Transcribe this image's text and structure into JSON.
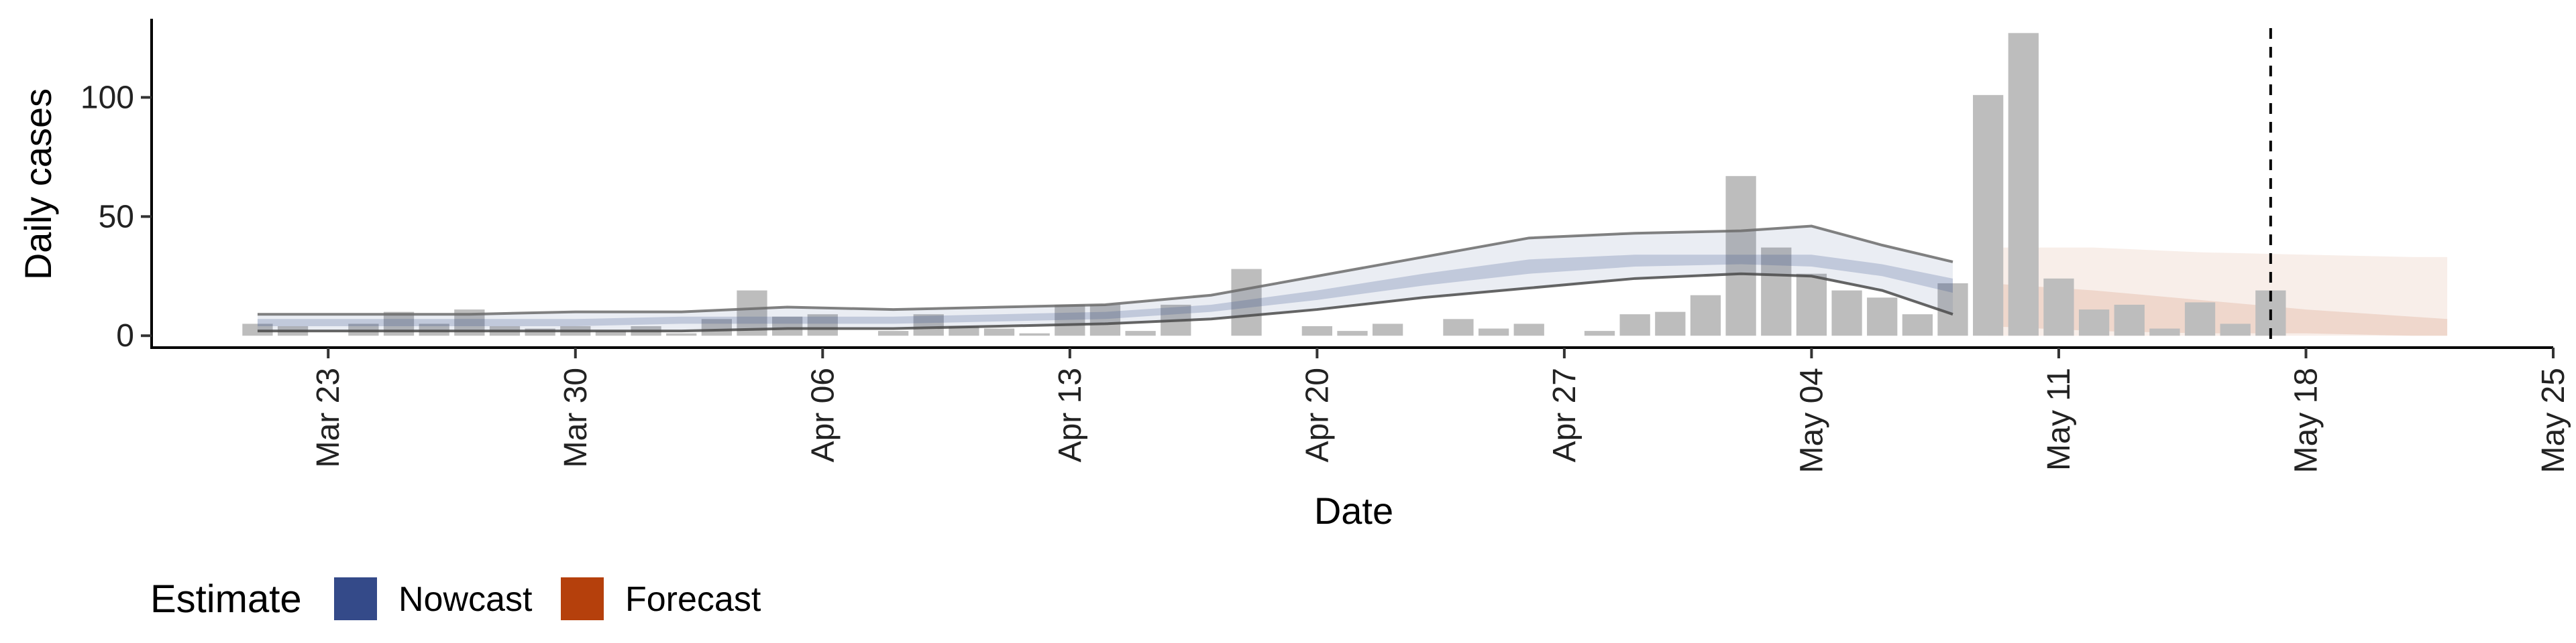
{
  "chart_data": {
    "type": "bar",
    "xlabel": "Date",
    "ylabel": "Daily cases",
    "ylim": [
      -5,
      133
    ],
    "xlim": [
      "2020-03-18",
      "2020-05-25"
    ],
    "y_ticks": [
      0,
      50,
      100
    ],
    "x_ticks": [
      {
        "date": "2020-03-23",
        "label": "Mar 23"
      },
      {
        "date": "2020-03-30",
        "label": "Mar 30"
      },
      {
        "date": "2020-04-06",
        "label": "Apr 06"
      },
      {
        "date": "2020-04-13",
        "label": "Apr 13"
      },
      {
        "date": "2020-04-20",
        "label": "Apr 20"
      },
      {
        "date": "2020-04-27",
        "label": "Apr 27"
      },
      {
        "date": "2020-05-04",
        "label": "May 04"
      },
      {
        "date": "2020-05-11",
        "label": "May 11"
      },
      {
        "date": "2020-05-18",
        "label": "May 18"
      },
      {
        "date": "2020-05-25",
        "label": "May 25"
      }
    ],
    "grid": false,
    "legend": {
      "title": "Estimate",
      "position": "bottom-left",
      "entries": [
        {
          "label": "Nowcast",
          "color": "#344a89"
        },
        {
          "label": "Forecast",
          "color": "#b5400c"
        }
      ]
    },
    "vline_date": "2020-05-17",
    "bars": {
      "name": "Reported cases",
      "color": "#bdbdbd",
      "x": [
        "2020-03-21",
        "2020-03-22",
        "2020-03-23",
        "2020-03-24",
        "2020-03-25",
        "2020-03-26",
        "2020-03-27",
        "2020-03-28",
        "2020-03-29",
        "2020-03-30",
        "2020-03-31",
        "2020-04-01",
        "2020-04-02",
        "2020-04-03",
        "2020-04-04",
        "2020-04-05",
        "2020-04-06",
        "2020-04-07",
        "2020-04-08",
        "2020-04-09",
        "2020-04-10",
        "2020-04-11",
        "2020-04-12",
        "2020-04-13",
        "2020-04-14",
        "2020-04-15",
        "2020-04-16",
        "2020-04-17",
        "2020-04-18",
        "2020-04-19",
        "2020-04-20",
        "2020-04-21",
        "2020-04-22",
        "2020-04-23",
        "2020-04-24",
        "2020-04-25",
        "2020-04-26",
        "2020-04-27",
        "2020-04-28",
        "2020-04-29",
        "2020-04-30",
        "2020-05-01",
        "2020-05-02",
        "2020-05-03",
        "2020-05-04",
        "2020-05-05",
        "2020-05-06",
        "2020-05-07",
        "2020-05-08",
        "2020-05-09",
        "2020-05-10",
        "2020-05-11",
        "2020-05-12",
        "2020-05-13",
        "2020-05-14",
        "2020-05-15",
        "2020-05-16",
        "2020-05-17"
      ],
      "values": [
        5,
        4,
        0,
        5,
        10,
        5,
        11,
        4,
        3,
        4,
        2,
        4,
        1,
        7,
        19,
        8,
        9,
        0,
        2,
        9,
        4,
        3,
        1,
        13,
        13,
        2,
        13,
        0,
        28,
        0,
        4,
        2,
        5,
        0,
        7,
        3,
        5,
        0,
        2,
        9,
        10,
        17,
        67,
        37,
        26,
        19,
        16,
        9,
        22,
        101,
        127,
        24,
        11,
        13,
        3,
        14,
        5,
        19
      ]
    },
    "nowcast": {
      "name": "Nowcast",
      "color": "#344a89",
      "x": [
        "2020-03-21",
        "2020-03-24",
        "2020-03-27",
        "2020-03-30",
        "2020-04-02",
        "2020-04-05",
        "2020-04-08",
        "2020-04-11",
        "2020-04-14",
        "2020-04-17",
        "2020-04-20",
        "2020-04-23",
        "2020-04-26",
        "2020-04-29",
        "2020-05-02",
        "2020-05-04",
        "2020-05-06",
        "2020-05-08"
      ],
      "lower_outer": [
        2,
        2,
        2,
        2,
        2,
        3,
        3,
        4,
        5,
        7,
        11,
        16,
        20,
        24,
        26,
        25,
        19,
        9
      ],
      "lower_inner": [
        4,
        4,
        4,
        4,
        5,
        5,
        5,
        6,
        7,
        10,
        15,
        21,
        26,
        29,
        30,
        29,
        25,
        18
      ],
      "upper_inner": [
        7,
        7,
        7,
        7,
        8,
        8,
        8,
        9,
        10,
        13,
        19,
        26,
        32,
        34,
        34,
        34,
        30,
        24
      ],
      "upper_outer": [
        9,
        9,
        9,
        10,
        10,
        12,
        11,
        12,
        13,
        17,
        25,
        33,
        41,
        43,
        44,
        46,
        38,
        31
      ]
    },
    "forecast": {
      "name": "Forecast",
      "color": "#b5400c",
      "x": [
        "2020-05-09",
        "2020-05-12",
        "2020-05-15",
        "2020-05-18",
        "2020-05-21",
        "2020-05-22"
      ],
      "lower_outer": [
        0,
        0,
        0,
        0,
        0,
        0
      ],
      "lower_inner": [
        4,
        2,
        1,
        1,
        0,
        0
      ],
      "upper_inner": [
        22,
        19,
        15,
        11,
        8,
        7
      ],
      "upper_outer": [
        37,
        37,
        35,
        34,
        33,
        33
      ]
    }
  }
}
